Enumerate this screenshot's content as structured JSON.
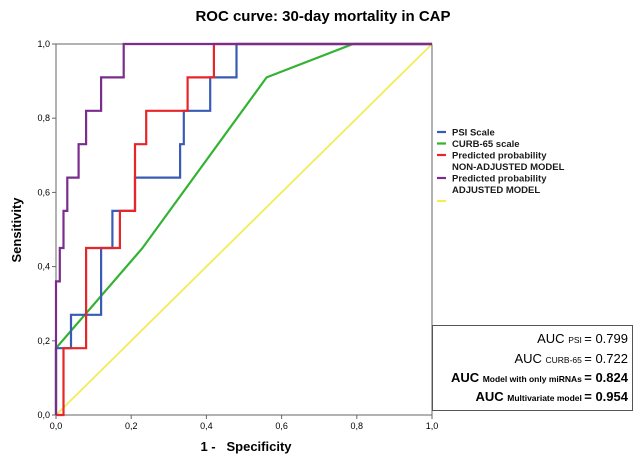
{
  "chart_data": {
    "type": "line",
    "title": "ROC curve: 30-day mortality in CAP",
    "xlabel": "1 -   Specificity",
    "ylabel": "Sensitivity",
    "xlim": [
      0,
      1
    ],
    "ylim": [
      0,
      1
    ],
    "x_ticks": [
      "0,0",
      "0,2",
      "0,4",
      "0,6",
      "0,8",
      "1,0"
    ],
    "y_ticks": [
      "0,0",
      "0,2",
      "0,4",
      "0,6",
      "0,8",
      "1,0"
    ],
    "legend_position": "right",
    "series": [
      {
        "legend": "PSI Scale",
        "color": "#3a5bb5",
        "points": [
          [
            0,
            0
          ],
          [
            0,
            0.18
          ],
          [
            0.04,
            0.18
          ],
          [
            0.04,
            0.27
          ],
          [
            0.12,
            0.27
          ],
          [
            0.12,
            0.45
          ],
          [
            0.15,
            0.45
          ],
          [
            0.15,
            0.55
          ],
          [
            0.21,
            0.55
          ],
          [
            0.21,
            0.64
          ],
          [
            0.33,
            0.64
          ],
          [
            0.33,
            0.73
          ],
          [
            0.34,
            0.73
          ],
          [
            0.34,
            0.82
          ],
          [
            0.41,
            0.82
          ],
          [
            0.41,
            0.91
          ],
          [
            0.48,
            0.91
          ],
          [
            0.48,
            1.0
          ],
          [
            1.0,
            1.0
          ]
        ]
      },
      {
        "legend": "CURB-65 scale",
        "color": "#34b233",
        "points": [
          [
            0,
            0
          ],
          [
            0,
            0.18
          ],
          [
            0.23,
            0.45
          ],
          [
            0.56,
            0.91
          ],
          [
            0.79,
            1.0
          ],
          [
            1.0,
            1.0
          ]
        ]
      },
      {
        "legend": "Predicted probability NON-ADJUSTED MODEL",
        "legend_lines": [
          "Predicted probability",
          "NON-ADJUSTED MODEL"
        ],
        "color": "#e8262a",
        "points": [
          [
            0,
            0
          ],
          [
            0.02,
            0
          ],
          [
            0.02,
            0.18
          ],
          [
            0.08,
            0.18
          ],
          [
            0.08,
            0.45
          ],
          [
            0.17,
            0.45
          ],
          [
            0.17,
            0.55
          ],
          [
            0.21,
            0.55
          ],
          [
            0.21,
            0.73
          ],
          [
            0.24,
            0.73
          ],
          [
            0.24,
            0.82
          ],
          [
            0.35,
            0.82
          ],
          [
            0.35,
            0.91
          ],
          [
            0.42,
            0.91
          ],
          [
            0.42,
            1.0
          ],
          [
            1.0,
            1.0
          ]
        ]
      },
      {
        "legend": "Predicted probability ADJUSTED MODEL",
        "legend_lines": [
          "Predicted probability",
          "ADJUSTED MODEL"
        ],
        "color": "#7b2d8e",
        "points": [
          [
            0,
            0
          ],
          [
            0,
            0.36
          ],
          [
            0.01,
            0.36
          ],
          [
            0.01,
            0.45
          ],
          [
            0.02,
            0.45
          ],
          [
            0.02,
            0.55
          ],
          [
            0.03,
            0.55
          ],
          [
            0.03,
            0.64
          ],
          [
            0.06,
            0.64
          ],
          [
            0.06,
            0.73
          ],
          [
            0.08,
            0.73
          ],
          [
            0.08,
            0.82
          ],
          [
            0.12,
            0.82
          ],
          [
            0.12,
            0.91
          ],
          [
            0.18,
            0.91
          ],
          [
            0.18,
            1.0
          ],
          [
            1.0,
            1.0
          ]
        ]
      },
      {
        "legend": "",
        "color": "#f3ec57",
        "points": [
          [
            0,
            0
          ],
          [
            1,
            1
          ]
        ]
      }
    ],
    "auc": [
      {
        "label": "AUC",
        "sub": "PSI",
        "value": "= 0.799",
        "bold": false
      },
      {
        "label": "AUC",
        "sub": "CURB-65",
        "value": "= 0.722",
        "bold": false
      },
      {
        "label": "AUC",
        "sub": "Model with only miRNAs",
        "value": "= 0.824",
        "bold": true
      },
      {
        "label": "AUC",
        "sub": "Multivariate model",
        "value": "= 0.954",
        "bold": true
      }
    ]
  }
}
